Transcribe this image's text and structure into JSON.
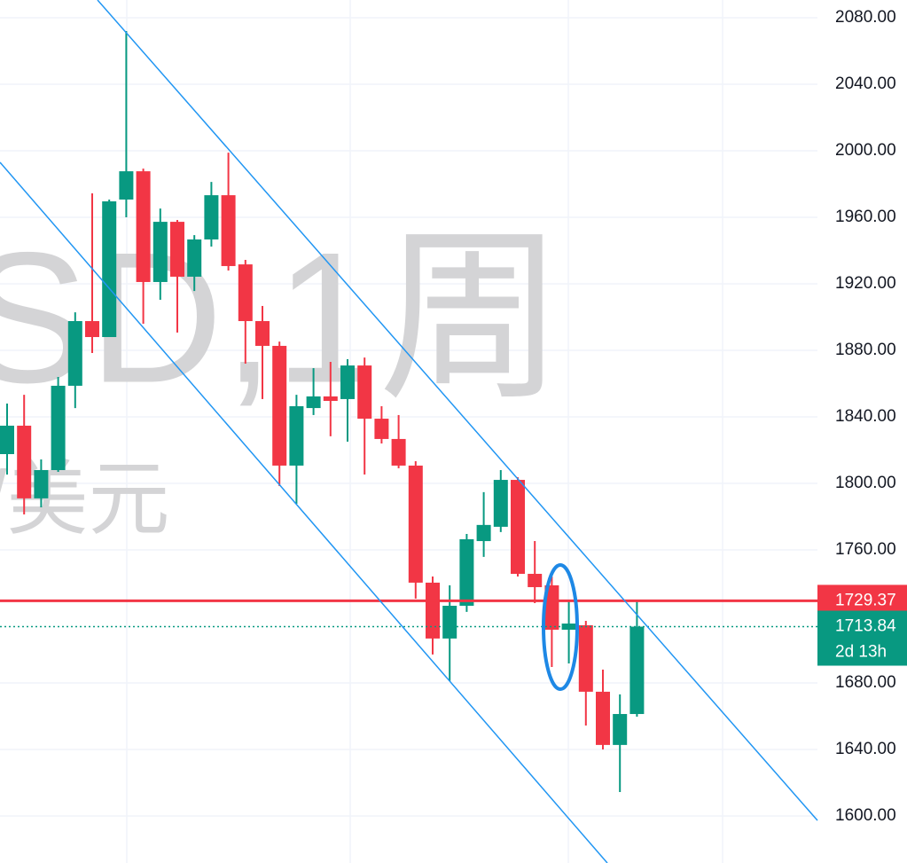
{
  "chart_data": {
    "type": "candlestick",
    "watermark": [
      "SD,1周",
      "/美元"
    ],
    "open": [
      1817.6,
      1834.7,
      1791.0,
      1808.0,
      1858.7,
      1897.6,
      1888.0,
      1970.7,
      1987.7,
      1921.1,
      1957.3,
      1924.3,
      1946.7,
      1973.3,
      1931.7,
      1897.6,
      1882.7,
      1810.7,
      1845.3,
      1852.3,
      1850.7,
      1870.9,
      1838.9,
      1826.7,
      1810.7,
      1740.3,
      1706.7,
      1726.4,
      1765.3,
      1773.9,
      1802.1,
      1745.6,
      1738.7,
      1712.0,
      1714.7,
      1674.7,
      1642.7,
      1661.3
    ],
    "high": [
      1848.0,
      1853.3,
      1814.4,
      1864.0,
      1902.9,
      1974.4,
      1970.7,
      2072.0,
      1989.3,
      1965.3,
      1958.4,
      1949.3,
      1981.3,
      1998.9,
      1934.4,
      1906.7,
      1885.3,
      1853.3,
      1869.3,
      1873.1,
      1874.7,
      1875.7,
      1846.4,
      1841.1,
      1813.3,
      1744.0,
      1738.7,
      1769.6,
      1794.7,
      1808.0,
      1803.7,
      1765.3,
      1744.0,
      1729.1,
      1717.3,
      1688.0,
      1673.1,
      1729.1
    ],
    "low": [
      1805.3,
      1781.3,
      1785.6,
      1806.9,
      1845.3,
      1878.4,
      1888.0,
      1960.0,
      1896.0,
      1910.4,
      1890.7,
      1915.7,
      1942.4,
      1928.0,
      1872.0,
      1850.7,
      1798.4,
      1787.7,
      1841.1,
      1828.3,
      1825.1,
      1805.3,
      1824.0,
      1809.1,
      1730.7,
      1697.1,
      1681.1,
      1722.7,
      1755.8,
      1770.7,
      1744.0,
      1728.0,
      1689.6,
      1691.7,
      1654.4,
      1640.0,
      1614.4,
      1659.7
    ],
    "close": [
      1834.7,
      1791.0,
      1808.0,
      1858.7,
      1897.6,
      1888.0,
      1969.6,
      1987.7,
      1921.1,
      1957.3,
      1924.3,
      1946.7,
      1973.3,
      1930.7,
      1897.6,
      1882.7,
      1810.7,
      1846.4,
      1852.3,
      1849.6,
      1870.9,
      1838.9,
      1826.7,
      1810.7,
      1740.3,
      1706.7,
      1726.4,
      1766.4,
      1775.0,
      1802.1,
      1745.6,
      1737.6,
      1712.0,
      1715.7,
      1674.7,
      1642.7,
      1661.3,
      1713.84
    ],
    "up_color": "#089981",
    "down_color": "#f23645",
    "ylim": [
      1571.7,
      2090.7
    ],
    "yticks": [
      {
        "value": 2080,
        "label": "2080.00"
      },
      {
        "value": 2040,
        "label": "2040.00"
      },
      {
        "value": 2000,
        "label": "2000.00"
      },
      {
        "value": 1960,
        "label": "1960.00"
      },
      {
        "value": 1920,
        "label": "1920.00"
      },
      {
        "value": 1880,
        "label": "1880.00"
      },
      {
        "value": 1840,
        "label": "1840.00"
      },
      {
        "value": 1800,
        "label": "1800.00"
      },
      {
        "value": 1760,
        "label": "1760.00"
      },
      {
        "value": 1680,
        "label": "1680.00"
      },
      {
        "value": 1640,
        "label": "1640.00"
      },
      {
        "value": 1600,
        "label": "1600.00"
      }
    ],
    "grid": true,
    "price_lines": [
      {
        "value": 1729.37,
        "color": "#f23645"
      },
      {
        "value": 1713.84,
        "color": "#089981",
        "countdown": "2d 13h"
      }
    ]
  }
}
